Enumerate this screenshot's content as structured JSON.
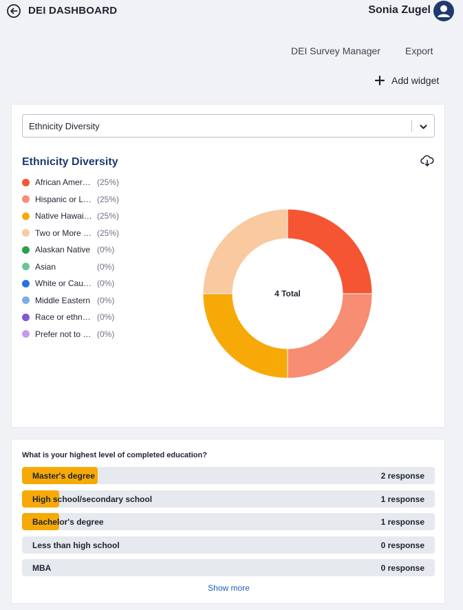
{
  "header": {
    "title": "DEI DASHBOARD",
    "user_name": "Sonia Zugel"
  },
  "toolbar": {
    "survey_manager": "DEI Survey Manager",
    "export": "Export",
    "add_widget": "Add widget"
  },
  "ethnicity_widget": {
    "select_value": "Ethnicity Diversity",
    "title": "Ethnicity Diversity",
    "legend": [
      {
        "label": "African American",
        "pct": "(25%)",
        "color": "#f55533"
      },
      {
        "label": "Hispanic or Latino",
        "pct": "(25%)",
        "color": "#f78d72"
      },
      {
        "label": "Native Hawaiian or Pacific Islander",
        "pct": "(25%)",
        "color": "#f7a908"
      },
      {
        "label": "Two or More Races",
        "pct": "(25%)",
        "color": "#f9c99f"
      },
      {
        "label": "Alaskan Native",
        "pct": "(0%)",
        "color": "#2e9e4f"
      },
      {
        "label": "Asian",
        "pct": "(0%)",
        "color": "#6cc594"
      },
      {
        "label": "White or Caucasian",
        "pct": "(0%)",
        "color": "#1f73e8"
      },
      {
        "label": "Middle Eastern",
        "pct": "(0%)",
        "color": "#7caee6"
      },
      {
        "label": "Race or ethnicity not listed",
        "pct": "(0%)",
        "color": "#8158d6"
      },
      {
        "label": "Prefer not to answer",
        "pct": "(0%)",
        "color": "#c59bee"
      }
    ]
  },
  "chart_data": {
    "type": "pie",
    "title": "Ethnicity Diversity",
    "center_label": "4 Total",
    "categories": [
      "African American",
      "Hispanic or Latino",
      "Native Hawaiian or Pacific Islander",
      "Two or More Races"
    ],
    "values": [
      1,
      1,
      1,
      1
    ],
    "colors": [
      "#f55533",
      "#f78d72",
      "#f7a908",
      "#f9c99f"
    ]
  },
  "education_widget": {
    "question": "What is your highest level of completed education?",
    "rows": [
      {
        "label": "Master's degree",
        "count": "2 response",
        "fraction": 0.183
      },
      {
        "label": "High school/secondary school",
        "count": "1 response",
        "fraction": 0.09
      },
      {
        "label": "Bachelor's degree",
        "count": "1 response",
        "fraction": 0.09
      },
      {
        "label": "Less than high school",
        "count": "0 response",
        "fraction": 0
      },
      {
        "label": "MBA",
        "count": "0 response",
        "fraction": 0
      }
    ],
    "show_more": "Show more"
  }
}
